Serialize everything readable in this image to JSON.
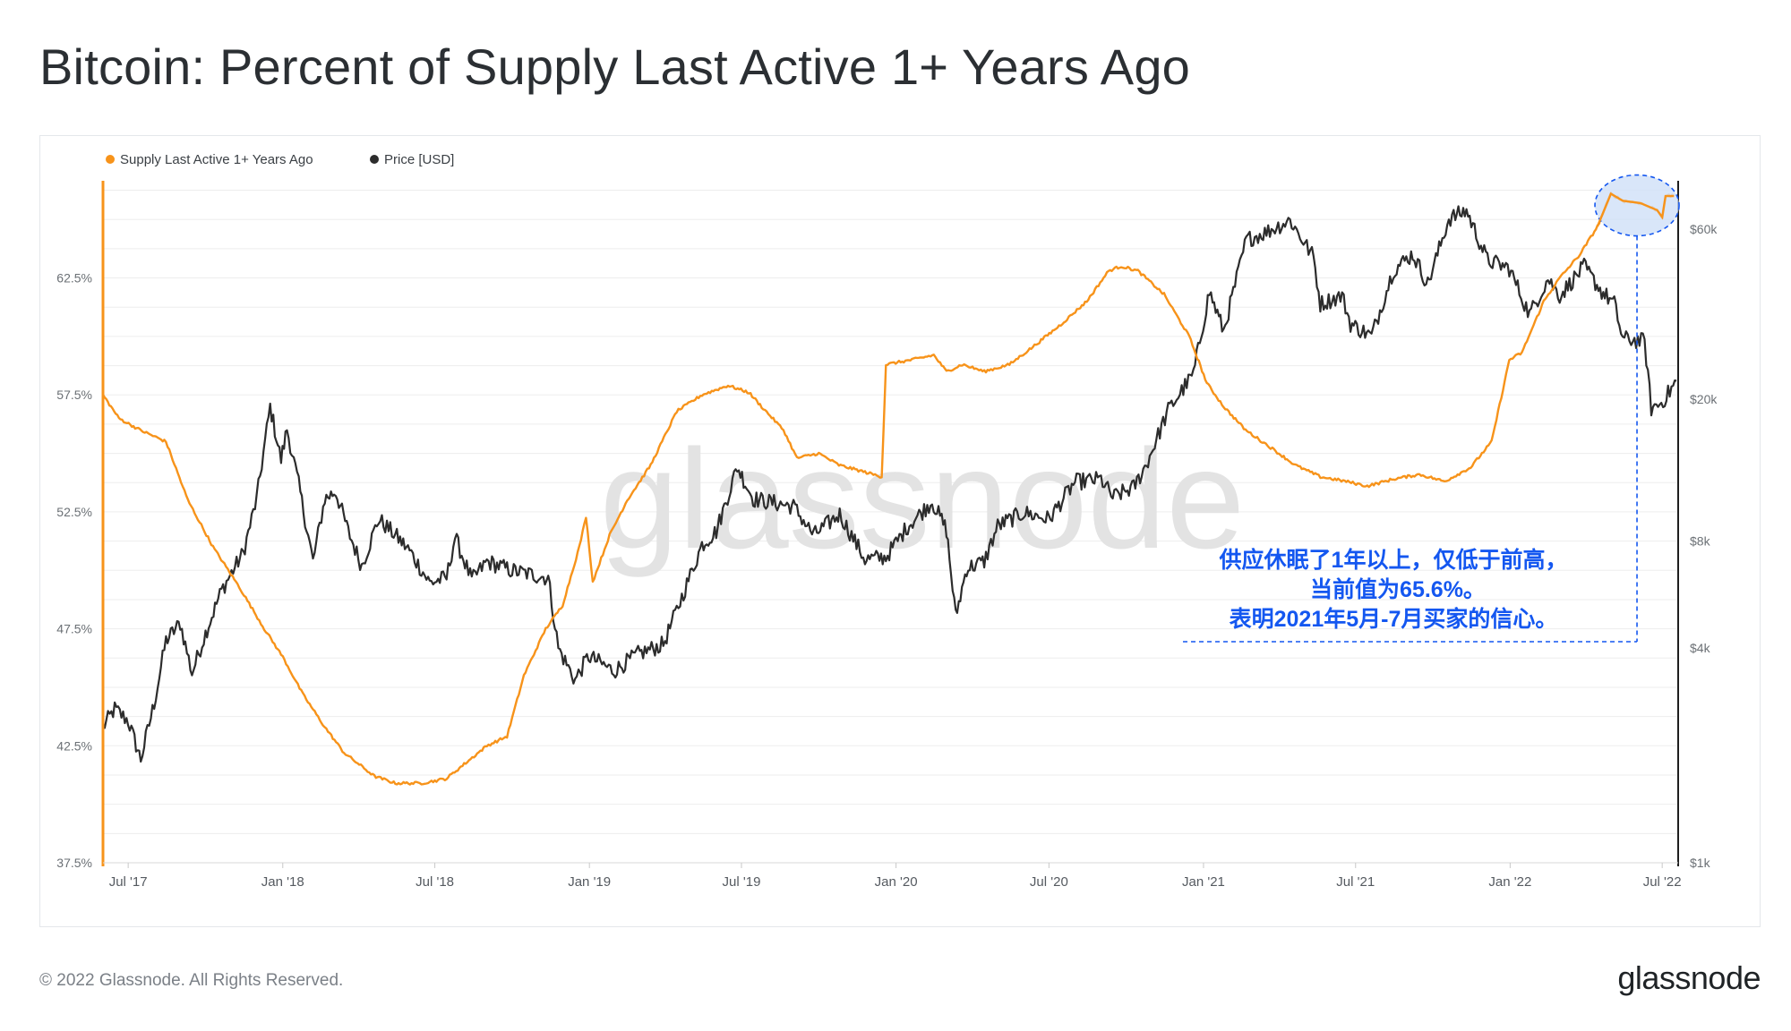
{
  "title": "Bitcoin: Percent of Supply Last Active 1+ Years Ago",
  "copyright": "© 2022 Glassnode. All Rights Reserved.",
  "logo_text": "glassnode",
  "colors": {
    "supply": "#f7931a",
    "price": "#2c2c2c",
    "annotation": "#1457f0",
    "highlight_fill": "#cfe0f7"
  },
  "chart_data": {
    "type": "line",
    "title": "Bitcoin: Percent of Supply Last Active 1+ Years Ago",
    "watermark": "glassnode",
    "legend_position": "top-left",
    "grid": true,
    "x_axis": {
      "ticks": [
        "Jul '17",
        "Jan '18",
        "Jul '18",
        "Jan '19",
        "Jul '19",
        "Jan '20",
        "Jul '20",
        "Jan '21",
        "Jul '21",
        "Jan '22",
        "Jul '22"
      ],
      "range": [
        "2017-06-01",
        "2022-07-20"
      ]
    },
    "y_axis_left": {
      "label": "",
      "range": [
        37.5,
        66.5
      ],
      "ticks": [
        "37.5%",
        "42.5%",
        "47.5%",
        "52.5%",
        "57.5%",
        "62.5%"
      ]
    },
    "y_axis_right": {
      "label": "",
      "scale": "log",
      "range": [
        1000,
        80000
      ],
      "ticks": [
        "$1k",
        "$4k",
        "$8k",
        "$20k",
        "$60k"
      ]
    },
    "series": [
      {
        "name": "Supply Last Active 1+ Years Ago",
        "axis": "left",
        "color": "#f7931a",
        "points": [
          [
            "2017-06-01",
            57.5
          ],
          [
            "2017-06-20",
            56.5
          ],
          [
            "2017-07-15",
            56.0
          ],
          [
            "2017-08-15",
            55.5
          ],
          [
            "2017-09-10",
            53.0
          ],
          [
            "2017-10-10",
            51.0
          ],
          [
            "2017-11-10",
            49.3
          ],
          [
            "2017-12-10",
            47.5
          ],
          [
            "2018-01-01",
            46.3
          ],
          [
            "2018-01-25",
            44.7
          ],
          [
            "2018-02-20",
            43.3
          ],
          [
            "2018-03-15",
            42.2
          ],
          [
            "2018-04-20",
            41.2
          ],
          [
            "2018-05-15",
            40.9
          ],
          [
            "2018-06-15",
            40.9
          ],
          [
            "2018-07-01",
            41.0
          ],
          [
            "2018-07-15",
            41.1
          ],
          [
            "2018-08-01",
            41.6
          ],
          [
            "2018-09-01",
            42.5
          ],
          [
            "2018-09-25",
            42.9
          ],
          [
            "2018-10-15",
            45.5
          ],
          [
            "2018-11-10",
            47.5
          ],
          [
            "2018-11-30",
            48.5
          ],
          [
            "2018-12-20",
            51.0
          ],
          [
            "2018-12-28",
            52.3
          ],
          [
            "2019-01-05",
            49.5
          ],
          [
            "2019-01-25",
            51.5
          ],
          [
            "2019-02-15",
            53.0
          ],
          [
            "2019-03-15",
            54.5
          ],
          [
            "2019-04-15",
            56.8
          ],
          [
            "2019-05-15",
            57.5
          ],
          [
            "2019-06-15",
            57.9
          ],
          [
            "2019-07-10",
            57.6
          ],
          [
            "2019-07-25",
            57.0
          ],
          [
            "2019-08-20",
            56.0
          ],
          [
            "2019-09-05",
            54.8
          ],
          [
            "2019-10-01",
            55.0
          ],
          [
            "2019-10-25",
            54.5
          ],
          [
            "2019-11-25",
            54.2
          ],
          [
            "2019-12-15",
            54.0
          ],
          [
            "2019-12-20",
            58.8
          ],
          [
            "2020-01-20",
            59.0
          ],
          [
            "2020-02-15",
            59.2
          ],
          [
            "2020-03-01",
            58.5
          ],
          [
            "2020-03-20",
            58.8
          ],
          [
            "2020-04-15",
            58.5
          ],
          [
            "2020-05-15",
            58.8
          ],
          [
            "2020-06-10",
            59.5
          ],
          [
            "2020-07-15",
            60.5
          ],
          [
            "2020-08-15",
            61.5
          ],
          [
            "2020-09-10",
            62.8
          ],
          [
            "2020-09-25",
            63.0
          ],
          [
            "2020-10-15",
            62.8
          ],
          [
            "2020-11-15",
            61.8
          ],
          [
            "2020-12-15",
            60.0
          ],
          [
            "2021-01-05",
            58.0
          ],
          [
            "2021-01-25",
            57.0
          ],
          [
            "2021-02-20",
            56.0
          ],
          [
            "2021-03-20",
            55.3
          ],
          [
            "2021-04-20",
            54.5
          ],
          [
            "2021-05-20",
            54.0
          ],
          [
            "2021-06-20",
            53.8
          ],
          [
            "2021-07-15",
            53.6
          ],
          [
            "2021-08-15",
            53.9
          ],
          [
            "2021-09-15",
            54.1
          ],
          [
            "2021-10-15",
            53.8
          ],
          [
            "2021-11-15",
            54.4
          ],
          [
            "2021-12-10",
            55.5
          ],
          [
            "2021-12-31",
            59.0
          ],
          [
            "2022-01-15",
            59.3
          ],
          [
            "2022-02-10",
            61.5
          ],
          [
            "2022-03-01",
            62.5
          ],
          [
            "2022-03-25",
            63.5
          ],
          [
            "2022-04-15",
            64.7
          ],
          [
            "2022-05-01",
            66.1
          ],
          [
            "2022-05-15",
            65.8
          ],
          [
            "2022-06-05",
            65.7
          ],
          [
            "2022-06-25",
            65.4
          ],
          [
            "2022-07-01",
            65.1
          ],
          [
            "2022-07-05",
            66.0
          ],
          [
            "2022-07-15",
            66.0
          ]
        ]
      },
      {
        "name": "Price [USD]",
        "axis": "right",
        "color": "#2c2c2c",
        "points": [
          [
            "2017-06-01",
            2400
          ],
          [
            "2017-06-15",
            2700
          ],
          [
            "2017-07-01",
            2500
          ],
          [
            "2017-07-16",
            1950
          ],
          [
            "2017-08-01",
            2800
          ],
          [
            "2017-08-15",
            4200
          ],
          [
            "2017-09-01",
            4700
          ],
          [
            "2017-09-15",
            3400
          ],
          [
            "2017-10-01",
            4400
          ],
          [
            "2017-10-20",
            5800
          ],
          [
            "2017-11-01",
            6500
          ],
          [
            "2017-11-15",
            7400
          ],
          [
            "2017-12-01",
            10500
          ],
          [
            "2017-12-17",
            19000
          ],
          [
            "2017-12-30",
            13500
          ],
          [
            "2018-01-06",
            16500
          ],
          [
            "2018-01-20",
            11500
          ],
          [
            "2018-02-06",
            7000
          ],
          [
            "2018-02-20",
            10500
          ],
          [
            "2018-03-05",
            11000
          ],
          [
            "2018-03-20",
            8500
          ],
          [
            "2018-04-05",
            6800
          ],
          [
            "2018-04-25",
            9200
          ],
          [
            "2018-05-15",
            8300
          ],
          [
            "2018-06-01",
            7500
          ],
          [
            "2018-06-25",
            6100
          ],
          [
            "2018-07-15",
            6300
          ],
          [
            "2018-07-25",
            8200
          ],
          [
            "2018-08-14",
            6200
          ],
          [
            "2018-09-01",
            7000
          ],
          [
            "2018-10-01",
            6600
          ],
          [
            "2018-11-13",
            6300
          ],
          [
            "2018-11-25",
            4000
          ],
          [
            "2018-12-15",
            3250
          ],
          [
            "2018-12-31",
            3800
          ],
          [
            "2019-01-30",
            3450
          ],
          [
            "2019-02-28",
            3850
          ],
          [
            "2019-03-30",
            4100
          ],
          [
            "2019-04-15",
            5100
          ],
          [
            "2019-05-15",
            7800
          ],
          [
            "2019-06-01",
            8500
          ],
          [
            "2019-06-26",
            12900
          ],
          [
            "2019-07-15",
            10500
          ],
          [
            "2019-08-01",
            10300
          ],
          [
            "2019-09-01",
            10000
          ],
          [
            "2019-09-25",
            8300
          ],
          [
            "2019-10-26",
            9500
          ],
          [
            "2019-11-25",
            7100
          ],
          [
            "2019-12-20",
            7200
          ],
          [
            "2020-01-15",
            8800
          ],
          [
            "2020-02-13",
            10300
          ],
          [
            "2020-03-01",
            8600
          ],
          [
            "2020-03-12",
            4900
          ],
          [
            "2020-03-25",
            6700
          ],
          [
            "2020-04-15",
            7000
          ],
          [
            "2020-05-01",
            8800
          ],
          [
            "2020-06-01",
            9600
          ],
          [
            "2020-07-01",
            9200
          ],
          [
            "2020-08-01",
            11700
          ],
          [
            "2020-09-01",
            11900
          ],
          [
            "2020-09-15",
            10600
          ],
          [
            "2020-10-10",
            11300
          ],
          [
            "2020-10-25",
            13100
          ],
          [
            "2020-11-20",
            18600
          ],
          [
            "2020-12-20",
            23500
          ],
          [
            "2021-01-08",
            40000
          ],
          [
            "2021-01-25",
            31000
          ],
          [
            "2021-02-21",
            56000
          ],
          [
            "2021-03-15",
            58500
          ],
          [
            "2021-04-14",
            63500
          ],
          [
            "2021-05-12",
            50000
          ],
          [
            "2021-05-20",
            37000
          ],
          [
            "2021-06-15",
            39000
          ],
          [
            "2021-06-25",
            32500
          ],
          [
            "2021-07-20",
            30000
          ],
          [
            "2021-08-15",
            46000
          ],
          [
            "2021-09-07",
            51000
          ],
          [
            "2021-09-25",
            42000
          ],
          [
            "2021-10-20",
            64000
          ],
          [
            "2021-11-10",
            67500
          ],
          [
            "2021-12-05",
            49000
          ],
          [
            "2021-12-31",
            46500
          ],
          [
            "2022-01-24",
            34500
          ],
          [
            "2022-02-15",
            43500
          ],
          [
            "2022-03-01",
            39000
          ],
          [
            "2022-03-30",
            47000
          ],
          [
            "2022-04-20",
            40000
          ],
          [
            "2022-05-05",
            37000
          ],
          [
            "2022-05-15",
            29500
          ],
          [
            "2022-06-10",
            29000
          ],
          [
            "2022-06-18",
            18800
          ],
          [
            "2022-06-30",
            19500
          ],
          [
            "2022-07-10",
            21000
          ],
          [
            "2022-07-18",
            22500
          ]
        ]
      }
    ],
    "annotation": {
      "lines": [
        "供应休眠了1年以上，仅低于前高，",
        "当前值为65.6%。",
        "表明2021年5月-7月买家的信心。"
      ],
      "highlight_date": "2022-06-01",
      "highlight_value": 65.6
    }
  }
}
